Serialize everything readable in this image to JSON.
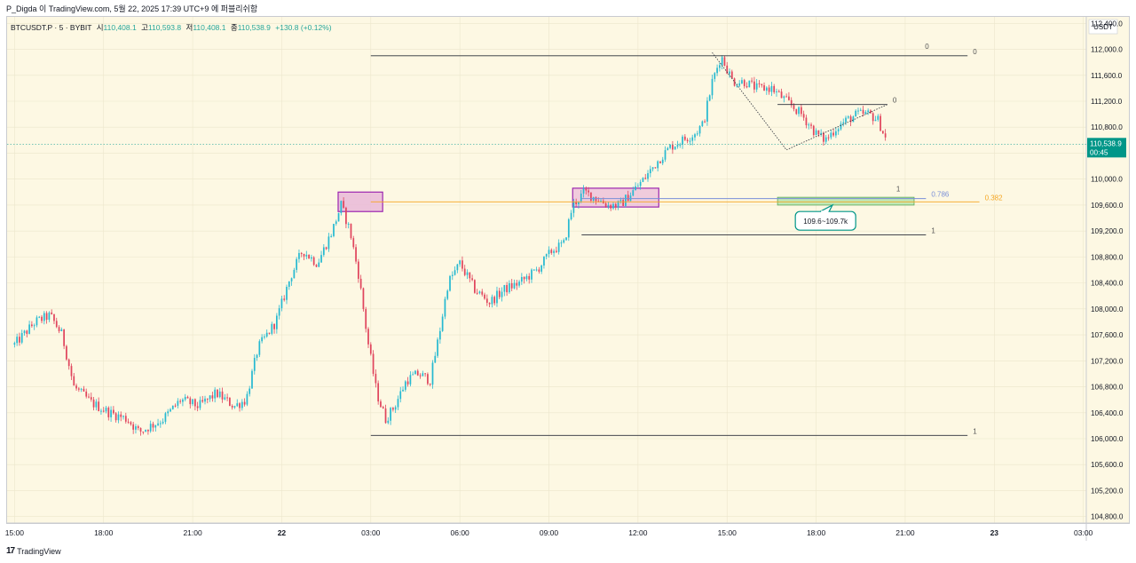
{
  "header": {
    "publisher": "P_Digda 이 TradingView.com, 5월 22, 2025 17:39 UTC+9 에 퍼블리쉬함"
  },
  "legend": {
    "symbol": "BTCUSDT.P · 5 · BYBIT",
    "open_label": "시",
    "open": "110,408.1",
    "high_label": "고",
    "high": "110,593.8",
    "low_label": "저",
    "low": "110,408.1",
    "close_label": "종",
    "close": "110,538.9",
    "change": "+130.8 (+0.12%)"
  },
  "footer": {
    "brand": "TradingView",
    "logo_icon": "tradingview-logo-icon"
  },
  "colors": {
    "background": "#fdf8e3",
    "up": "#26b9d1",
    "down": "#e0455d",
    "grid": "#ece6cc",
    "orange_level": "#f5a623",
    "blue_level": "#7a8fd8",
    "label_box": "#009688",
    "pink_zone": "#e9b8d8",
    "pink_zone_border": "#9c27b0",
    "green_zone": "#b9e6b0"
  },
  "chart_data": {
    "type": "candlestick",
    "title": "BTCUSDT.P · 5 · BYBIT",
    "currency": "USDT",
    "ylim": [
      104700,
      112500
    ],
    "y_ticks": [
      "112,400.0",
      "112,000.0",
      "111,600.0",
      "111,200.0",
      "110,800.0",
      "110,400.0",
      "110,000.0",
      "109,600.0",
      "109,200.0",
      "108,800.0",
      "108,400.0",
      "108,000.0",
      "107,600.0",
      "107,200.0",
      "106,800.0",
      "106,400.0",
      "106,000.0",
      "105,600.0",
      "105,200.0",
      "104,800.0"
    ],
    "y_tick_values": [
      112400,
      112000,
      111600,
      111200,
      110800,
      110400,
      110000,
      109600,
      109200,
      108800,
      108400,
      108000,
      107600,
      107200,
      106800,
      106400,
      106000,
      105600,
      105200,
      104800
    ],
    "x_ticks": [
      "15:00",
      "18:00",
      "21:00",
      "22",
      "03:00",
      "06:00",
      "09:00",
      "12:00",
      "15:00",
      "18:00",
      "21:00",
      "23",
      "03:00"
    ],
    "x_tick_hours": [
      0,
      3,
      6,
      9,
      12,
      15,
      18,
      21,
      24,
      27,
      30,
      33,
      36
    ],
    "x_tick_bold": [
      false,
      false,
      false,
      true,
      false,
      false,
      false,
      false,
      false,
      false,
      false,
      true,
      false
    ],
    "x_range_hours": [
      -0.25,
      36.1
    ],
    "current_price": 110538.9,
    "current_price_label": "110,538.9",
    "countdown_label": "00:45",
    "price_path": [
      [
        0,
        107450
      ],
      [
        0.7,
        107800
      ],
      [
        1.2,
        107900
      ],
      [
        1.6,
        107600
      ],
      [
        2.0,
        106800
      ],
      [
        2.6,
        106550
      ],
      [
        3.2,
        106400
      ],
      [
        3.8,
        106300
      ],
      [
        4.2,
        106100
      ],
      [
        5.0,
        106300
      ],
      [
        5.6,
        106600
      ],
      [
        6.2,
        106500
      ],
      [
        6.8,
        106700
      ],
      [
        7.4,
        106500
      ],
      [
        7.8,
        106600
      ],
      [
        8.2,
        107400
      ],
      [
        8.8,
        107800
      ],
      [
        9.3,
        108500
      ],
      [
        9.7,
        108900
      ],
      [
        10.2,
        108700
      ],
      [
        10.7,
        109200
      ],
      [
        11.0,
        109600
      ],
      [
        11.3,
        109200
      ],
      [
        11.6,
        108500
      ],
      [
        11.9,
        107500
      ],
      [
        12.2,
        106700
      ],
      [
        12.5,
        106300
      ],
      [
        12.8,
        106500
      ],
      [
        13.2,
        106900
      ],
      [
        13.6,
        107000
      ],
      [
        14.0,
        106900
      ],
      [
        14.3,
        107600
      ],
      [
        14.6,
        108400
      ],
      [
        15.0,
        108700
      ],
      [
        15.5,
        108300
      ],
      [
        16.0,
        108100
      ],
      [
        16.5,
        108300
      ],
      [
        17.0,
        108400
      ],
      [
        17.6,
        108600
      ],
      [
        18.1,
        108900
      ],
      [
        18.5,
        109000
      ],
      [
        18.8,
        109600
      ],
      [
        19.2,
        109800
      ],
      [
        19.6,
        109700
      ],
      [
        20.0,
        109600
      ],
      [
        20.4,
        109600
      ],
      [
        20.8,
        109800
      ],
      [
        21.2,
        110000
      ],
      [
        21.7,
        110300
      ],
      [
        22.1,
        110500
      ],
      [
        22.5,
        110600
      ],
      [
        22.9,
        110700
      ],
      [
        23.2,
        110850
      ],
      [
        23.5,
        111500
      ],
      [
        23.8,
        111900
      ],
      [
        24.2,
        111500
      ],
      [
        24.6,
        111500
      ],
      [
        25.0,
        111400
      ],
      [
        25.5,
        111400
      ],
      [
        26.0,
        111200
      ],
      [
        26.5,
        111000
      ],
      [
        27.0,
        110700
      ],
      [
        27.3,
        110600
      ],
      [
        27.7,
        110800
      ],
      [
        28.0,
        110900
      ],
      [
        28.4,
        111000
      ],
      [
        28.8,
        111000
      ],
      [
        29.1,
        110900
      ],
      [
        29.4,
        110550
      ]
    ],
    "horizontal_lines": [
      {
        "price": 111900,
        "from_h": 12.0,
        "to_h": 32.1,
        "label": "0",
        "label2": "0",
        "color": "#2a2e39"
      },
      {
        "price": 106050,
        "from_h": 12.0,
        "to_h": 32.1,
        "label": "1",
        "color": "#2a2e39"
      },
      {
        "price": 111150,
        "from_h": 25.7,
        "to_h": 29.4,
        "label": "0",
        "color": "#2a2e39"
      },
      {
        "price": 109700,
        "from_h": 19.1,
        "to_h": 30.7,
        "label": "0.786",
        "color": "#7a8fd8"
      },
      {
        "price": 109650,
        "from_h": 12.0,
        "to_h": 32.5,
        "label": "0.382",
        "color": "#f5a623"
      },
      {
        "price": 109140,
        "from_h": 19.1,
        "to_h": 30.7,
        "label": "1",
        "color": "#2a2e39"
      }
    ],
    "annotations": [
      {
        "text": "109.6~109.7k"
      }
    ],
    "level_labels": {
      "right_one": "1"
    }
  }
}
